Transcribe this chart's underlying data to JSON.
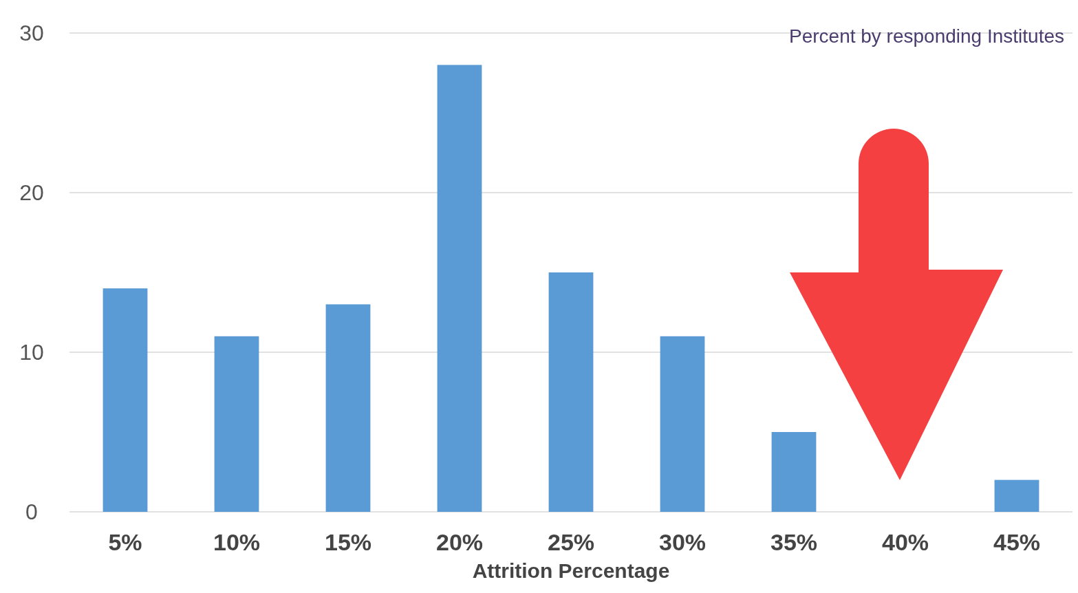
{
  "chart_data": {
    "type": "bar",
    "xlabel": "Attrition Percentage",
    "annotations": [
      "Percent by responding Institutes"
    ],
    "categories": [
      "5%",
      "10%",
      "15%",
      "20%",
      "25%",
      "30%",
      "35%",
      "40%",
      "45%"
    ],
    "values": [
      14,
      11,
      13,
      28,
      15,
      11,
      5,
      0,
      2
    ],
    "color": "#5b9bd5",
    "ylim": [
      0,
      30
    ],
    "yticks": [
      0,
      10,
      20,
      30
    ],
    "grid": "y"
  }
}
